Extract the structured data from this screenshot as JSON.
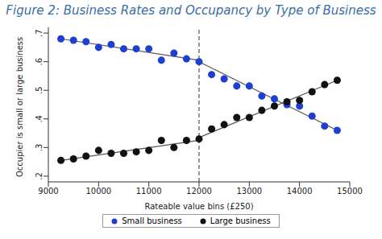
{
  "chart_data": {
    "type": "scatter",
    "title": "Figure 2: Business Rates and Occupancy by Type of Business",
    "x_label": "Rateable value bins (£250)",
    "y_label": "Occupier is small or large business",
    "xlim": [
      9000,
      15000
    ],
    "xticks": [
      9000,
      10000,
      11000,
      12000,
      13000,
      14000,
      15000
    ],
    "ylim": [
      0.18,
      0.72
    ],
    "yticks": [
      {
        "value": 0.2,
        "label": ".2"
      },
      {
        "value": 0.3,
        "label": ".3"
      },
      {
        "value": 0.4,
        "label": ".4"
      },
      {
        "value": 0.5,
        "label": ".5"
      },
      {
        "value": 0.6,
        "label": ".6"
      },
      {
        "value": 0.7,
        "label": ".7"
      }
    ],
    "grid": false,
    "legend": "bottom",
    "marker": "circle",
    "reference_x": 12000,
    "x": [
      9250,
      9500,
      9750,
      10000,
      10250,
      10500,
      10750,
      11000,
      11250,
      11500,
      11750,
      12000,
      12250,
      12500,
      12750,
      13000,
      13250,
      13500,
      13750,
      14000,
      14250,
      14500,
      14750
    ],
    "series": [
      {
        "name": "Small business",
        "color": "#1f3fd0",
        "values": [
          0.68,
          0.675,
          0.67,
          0.65,
          0.66,
          0.645,
          0.645,
          0.645,
          0.605,
          0.63,
          0.61,
          0.6,
          0.555,
          0.54,
          0.515,
          0.515,
          0.48,
          0.47,
          0.45,
          0.445,
          0.41,
          0.375,
          0.36
        ],
        "fit_lines": [
          {
            "x": [
              9250,
              12000
            ],
            "values": [
              0.68,
              0.605
            ]
          },
          {
            "x": [
              12000,
              14750
            ],
            "values": [
              0.6,
              0.36
            ]
          }
        ]
      },
      {
        "name": "Large business",
        "color": "#111111",
        "values": [
          0.255,
          0.26,
          0.27,
          0.29,
          0.28,
          0.28,
          0.285,
          0.29,
          0.325,
          0.3,
          0.325,
          0.33,
          0.365,
          0.38,
          0.405,
          0.405,
          0.43,
          0.445,
          0.46,
          0.465,
          0.495,
          0.52,
          0.535
        ],
        "fit_lines": [
          {
            "x": [
              9250,
              12000
            ],
            "values": [
              0.255,
              0.325
            ]
          },
          {
            "x": [
              12000,
              14750
            ],
            "values": [
              0.335,
              0.535
            ]
          }
        ]
      }
    ]
  }
}
